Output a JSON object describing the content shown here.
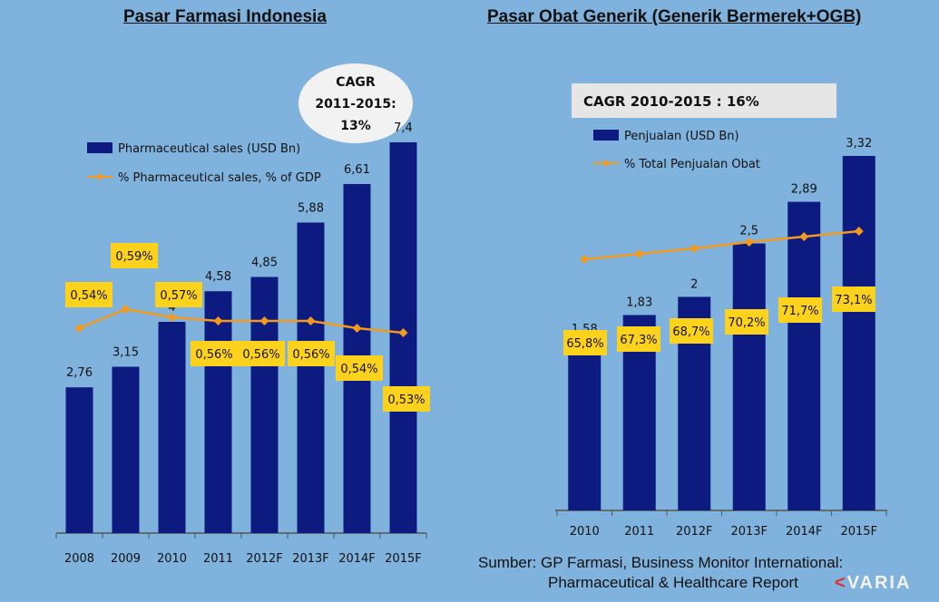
{
  "charts": {
    "left": {
      "title": "Pasar Farmasi Indonesia",
      "cagr_bubble": [
        "CAGR",
        "2011-2015:",
        "13%"
      ],
      "legend": {
        "bars": "Pharmaceutical sales (USD Bn)",
        "line": "% Pharmaceutical sales, % of GDP"
      }
    },
    "right": {
      "title": "Pasar Obat Generik (Generik Bermerek+OGB)",
      "cagr_box": "CAGR 2010-2015 : 16%",
      "legend": {
        "bars": "Penjualan (USD Bn)",
        "line": "% Total Penjualan Obat"
      }
    }
  },
  "source": {
    "line1": "Sumber: GP Farmasi, Business Monitor International:",
    "line2": "Pharmaceutical & Healthcare Report"
  },
  "logo": {
    "mark": "<",
    "text": "VARIA"
  },
  "colors": {
    "background": "#7fb2dc",
    "bar": "#0d1a80",
    "line": "#f39a1e",
    "label_box": "#fdd21c",
    "bubble": "#f2f2f2"
  },
  "chart_data": [
    {
      "type": "bar",
      "title": "Pasar Farmasi Indonesia",
      "categories": [
        "2008",
        "2009",
        "2010",
        "2011",
        "2012F",
        "2013F",
        "2014F",
        "2015F"
      ],
      "series": [
        {
          "name": "Pharmaceutical sales (USD Bn)",
          "values": [
            2.76,
            3.15,
            4,
            4.58,
            4.85,
            5.88,
            6.61,
            7.4
          ],
          "labels": [
            "2,76",
            "3,15",
            "4",
            "4,58",
            "4,85",
            "5,88",
            "6,61",
            "7,4"
          ]
        },
        {
          "name": "% Pharmaceutical sales, % of GDP",
          "type": "line",
          "values": [
            0.54,
            0.59,
            0.57,
            0.56,
            0.56,
            0.56,
            0.54,
            0.53
          ],
          "labels": [
            "0,54%",
            "0,59%",
            "0,57%",
            "0,56%",
            "0,56%",
            "0,56%",
            "0,54%",
            "0,53%"
          ]
        }
      ],
      "ylim": [
        0,
        8
      ],
      "grid": false,
      "legend": "top-left"
    },
    {
      "type": "bar",
      "title": "Pasar Obat Generik (Generik Bermerek+OGB)",
      "categories": [
        "2010",
        "2011",
        "2012F",
        "2013F",
        "2014F",
        "2015F"
      ],
      "series": [
        {
          "name": "Penjualan (USD Bn)",
          "values": [
            1.58,
            1.83,
            2,
            2.5,
            2.89,
            3.32
          ],
          "labels": [
            "1,58",
            "1,83",
            "2",
            "2,5",
            "2,89",
            "3,32"
          ]
        },
        {
          "name": "% Total Penjualan Obat",
          "type": "line",
          "values": [
            65.8,
            67.3,
            68.7,
            70.2,
            71.7,
            73.1
          ],
          "labels": [
            "65,8%",
            "67,3%",
            "68,7%",
            "70,2%",
            "71,7%",
            "73,1%"
          ]
        }
      ],
      "ylim": [
        0,
        3.6
      ],
      "grid": false,
      "legend": "top-left"
    }
  ]
}
